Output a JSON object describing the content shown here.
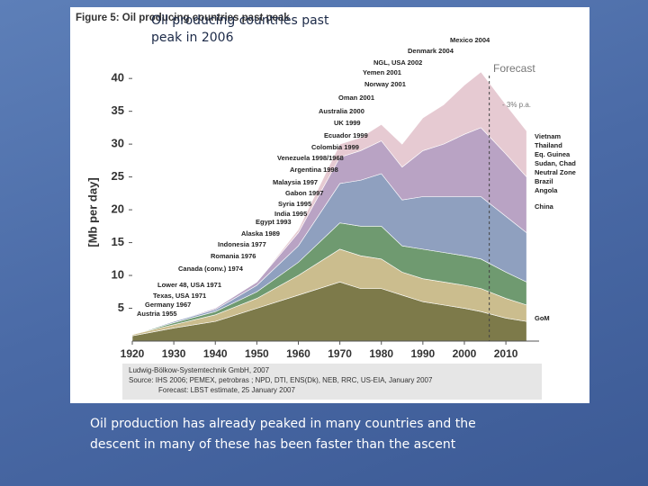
{
  "slide": {
    "heading": "Oil producing countries past peak in 2006",
    "caption": "Oil production has already peaked in many countries and the descent in many of these has been faster than the ascent"
  },
  "chart_data": {
    "type": "stacked-area",
    "title": "Figure 5: Oil producing countries past peak",
    "ylabel": "[Mb per day]",
    "x": [
      1920,
      1930,
      1940,
      1950,
      1960,
      1970,
      1975,
      1980,
      1985,
      1990,
      1995,
      2000,
      2004,
      2010,
      2015
    ],
    "series": [
      {
        "color": "#7d7a4a",
        "values": [
          0.8,
          2,
          3,
          5,
          7,
          9,
          8,
          8,
          7,
          6,
          5.5,
          5,
          4.5,
          3.5,
          3
        ]
      },
      {
        "color": "#cbbd8e",
        "values": [
          0.2,
          0.5,
          1,
          1.5,
          3,
          5,
          5,
          4.5,
          3.5,
          3.5,
          3.5,
          3.5,
          3.5,
          3,
          2.5
        ]
      },
      {
        "color": "#6f9a70",
        "values": [
          0,
          0.3,
          0.5,
          1,
          2,
          4,
          4.5,
          5,
          4,
          4.5,
          4.5,
          4.5,
          4.5,
          4,
          3.5
        ]
      },
      {
        "color": "#8fa0bf",
        "values": [
          0,
          0.2,
          0.3,
          1,
          2.5,
          6,
          7,
          8,
          7,
          8,
          8.5,
          9,
          9.5,
          8.5,
          7.5
        ]
      },
      {
        "color": "#b9a3c4",
        "values": [
          0,
          0,
          0.2,
          0.5,
          2,
          4,
          4.5,
          5,
          5,
          7,
          8,
          9.5,
          10.5,
          9.5,
          8.5
        ]
      },
      {
        "color": "#e6cad2",
        "values": [
          0,
          0,
          0,
          0,
          0.5,
          2,
          2,
          2.5,
          3.5,
          5,
          6,
          7.5,
          8.5,
          7.5,
          7
        ]
      }
    ],
    "xlim": [
      1920,
      2018
    ],
    "ylim": [
      0,
      44
    ],
    "xticks": [
      1920,
      1930,
      1940,
      1950,
      1960,
      1970,
      1980,
      1990,
      2000,
      2010
    ],
    "yticks": [
      5,
      10,
      15,
      20,
      25,
      30,
      35,
      40
    ],
    "forecast_start": 2006,
    "forecast_label": "Forecast",
    "forecast_rate": "- 3% p.a.",
    "annotations": [
      "Mexico 2004",
      "Denmark 2004",
      "NGL, USA 2002",
      "Yemen 2001",
      "Norway 2001",
      "Oman 2001",
      "Australia 2000",
      "UK 1999",
      "Ecuador 1999",
      "Colombia 1999",
      "Venezuela 1998/1968",
      "Argentina 1998",
      "Malaysia 1997",
      "Gabon 1997",
      "Syria 1995",
      "India 1995",
      "Egypt 1993",
      "Alaska 1989",
      "Indonesia 1977",
      "Romania 1976",
      "Canada (conv.) 1974",
      "Lower 48, USA  1971",
      "Texas, USA 1971",
      "Germany 1967",
      "Austria 1955"
    ],
    "right_labels": [
      "Vietnam",
      "Thailand",
      "Eq. Guinea",
      "Sudan, Chad",
      "Neutral Zone",
      "Brazil",
      "Angola",
      "China",
      "GoM"
    ],
    "source": [
      "Ludwig-Bölkow-Systemtechnik GmbH, 2007",
      "Source: IHS 2006; PEMEX, petrobras ; NPD, DTI, ENS(Dk), NEB, RRC, US-EIA, January 2007",
      "Forecast: LBST estimate, 25 January 2007"
    ]
  }
}
